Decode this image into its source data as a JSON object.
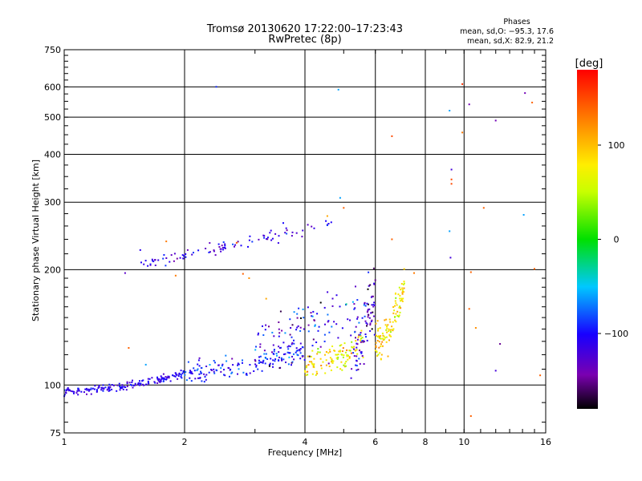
{
  "chart_data": {
    "type": "scatter",
    "title": "Tromsø 20130620 17:22:00–17:23:43",
    "subtitle": "RwPretec (8p)",
    "xlabel": "Frequency [MHz]",
    "ylabel": "Stationary phase Virtual Height [km]",
    "xscale": "log",
    "yscale": "log",
    "xlim": [
      1,
      16
    ],
    "ylim": [
      75,
      750
    ],
    "x_ticks": [
      1,
      2,
      4,
      6,
      8,
      10,
      16
    ],
    "x_tick_labels": [
      "1",
      "2",
      "4",
      "6",
      "8",
      "10",
      "16"
    ],
    "y_ticks": [
      75,
      100,
      200,
      300,
      400,
      500,
      600,
      750
    ],
    "y_tick_labels": [
      "75",
      "100",
      "200",
      "300",
      "400",
      "500",
      "600",
      "750"
    ],
    "x_grid": [
      1,
      2,
      4,
      6,
      8,
      10,
      16
    ],
    "y_grid": [
      75,
      100,
      200,
      300,
      400,
      500,
      600,
      750
    ],
    "grid": true,
    "phase_info": {
      "header": "Phases",
      "line_o": "mean, sd,O:  −95.3, 17.6",
      "line_x": "mean, sd,X:   82.9, 21.2"
    },
    "colorbar": {
      "label": "[deg]",
      "range": [
        -180,
        180
      ],
      "ticks": [
        100,
        0,
        -100
      ],
      "tick_labels": [
        "100",
        "0",
        "−100"
      ]
    },
    "traces": [
      {
        "x_start": 1.0,
        "x_end": 2.0,
        "h_start": 96,
        "h_end": 107,
        "curve": 1.6,
        "n": 170,
        "spread": 0.012,
        "phase": -110,
        "phase_sd": 12
      },
      {
        "x_start": 2.0,
        "x_end": 4.0,
        "h_start": 107,
        "h_end": 124,
        "curve": 1.8,
        "n": 160,
        "spread": 0.035,
        "phase": -100,
        "phase_sd": 20
      },
      {
        "x_start": 4.0,
        "x_end": 5.6,
        "h_start": 112,
        "h_end": 130,
        "curve": 1.5,
        "n": 110,
        "spread": 0.04,
        "phase": 75,
        "phase_sd": 25
      },
      {
        "x_start": 5.2,
        "x_end": 6.0,
        "h_start": 122,
        "h_end": 175,
        "curve": 2.5,
        "n": 70,
        "spread": 0.08,
        "phase": -120,
        "phase_sd": 25
      },
      {
        "x_start": 6.0,
        "x_end": 7.1,
        "h_start": 130,
        "h_end": 185,
        "curve": 2.2,
        "n": 110,
        "spread": 0.06,
        "phase": 85,
        "phase_sd": 25
      },
      {
        "x_start": 3.0,
        "x_end": 6.0,
        "h_start": 125,
        "h_end": 165,
        "curve": 1.0,
        "n": 130,
        "spread": 0.09,
        "phase": -115,
        "phase_sd": 30
      },
      {
        "x_start": 1.55,
        "x_end": 4.7,
        "h_start": 203,
        "h_end": 265,
        "curve": 1.0,
        "n": 95,
        "spread": 0.02,
        "phase": -115,
        "phase_sd": 18
      }
    ],
    "points": [
      {
        "x": 2.4,
        "y": 600,
        "phase": -90
      },
      {
        "x": 4.85,
        "y": 590,
        "phase": -60
      },
      {
        "x": 4.9,
        "y": 308,
        "phase": -60
      },
      {
        "x": 9.2,
        "y": 520,
        "phase": -60
      },
      {
        "x": 9.9,
        "y": 610,
        "phase": 160
      },
      {
        "x": 10.3,
        "y": 540,
        "phase": -140
      },
      {
        "x": 12.0,
        "y": 490,
        "phase": -140
      },
      {
        "x": 14.2,
        "y": 578,
        "phase": -140
      },
      {
        "x": 14.8,
        "y": 546,
        "phase": 140
      },
      {
        "x": 9.9,
        "y": 456,
        "phase": 130
      },
      {
        "x": 6.6,
        "y": 446,
        "phase": 150
      },
      {
        "x": 9.3,
        "y": 365,
        "phase": -120
      },
      {
        "x": 9.3,
        "y": 344,
        "phase": 150
      },
      {
        "x": 9.3,
        "y": 335,
        "phase": 150
      },
      {
        "x": 11.2,
        "y": 290,
        "phase": 140
      },
      {
        "x": 14.1,
        "y": 278,
        "phase": -60
      },
      {
        "x": 9.2,
        "y": 252,
        "phase": -60
      },
      {
        "x": 9.25,
        "y": 215,
        "phase": -120
      },
      {
        "x": 10.4,
        "y": 197,
        "phase": 140
      },
      {
        "x": 10.3,
        "y": 158,
        "phase": 140
      },
      {
        "x": 10.7,
        "y": 141,
        "phase": 120
      },
      {
        "x": 12.3,
        "y": 128,
        "phase": -150
      },
      {
        "x": 12.0,
        "y": 109,
        "phase": -120
      },
      {
        "x": 15.5,
        "y": 106,
        "phase": 140
      },
      {
        "x": 10.4,
        "y": 83,
        "phase": 140
      },
      {
        "x": 1.45,
        "y": 125,
        "phase": 140
      },
      {
        "x": 1.8,
        "y": 237,
        "phase": 130
      },
      {
        "x": 1.55,
        "y": 225,
        "phase": -110
      },
      {
        "x": 1.9,
        "y": 193,
        "phase": 130
      },
      {
        "x": 2.8,
        "y": 195,
        "phase": 140
      },
      {
        "x": 2.9,
        "y": 190,
        "phase": 120
      },
      {
        "x": 3.2,
        "y": 168,
        "phase": 110
      },
      {
        "x": 5.0,
        "y": 290,
        "phase": 140
      },
      {
        "x": 4.55,
        "y": 276,
        "phase": 110
      },
      {
        "x": 6.6,
        "y": 240,
        "phase": 140
      },
      {
        "x": 7.5,
        "y": 196,
        "phase": 130
      },
      {
        "x": 15.0,
        "y": 201,
        "phase": 140
      },
      {
        "x": 1.6,
        "y": 113,
        "phase": -60
      },
      {
        "x": 1.42,
        "y": 196,
        "phase": -130
      },
      {
        "x": 2.7,
        "y": 235,
        "phase": 140
      }
    ]
  }
}
